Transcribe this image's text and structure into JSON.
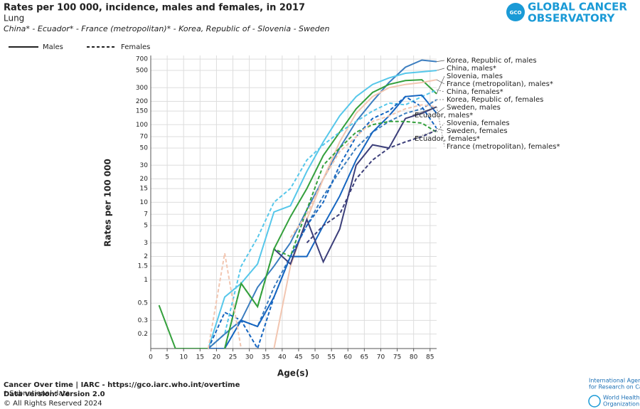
{
  "chart_data": {
    "type": "line",
    "title": "Rates per 100 000, incidence, males and females, in 2017",
    "subtitle": "Lung",
    "populations": "China* - Ecuador* - France (metropolitan)* - Korea, Republic of - Slovenia - Sweden",
    "xlabel": "Age(s)",
    "ylabel": "Rates per 100 000",
    "legend": [
      {
        "label": "Males",
        "dash": false
      },
      {
        "label": "Females",
        "dash": true
      }
    ],
    "log_y": true,
    "grid": true,
    "x": [
      2.5,
      7.5,
      12.5,
      17.5,
      22.5,
      27.5,
      32.5,
      37.5,
      42.5,
      47.5,
      52.5,
      57.5,
      62.5,
      67.5,
      72.5,
      77.5,
      82.5,
      87
    ],
    "xlim": [
      0,
      87
    ],
    "xticks": [
      0,
      5,
      10,
      15,
      20,
      25,
      30,
      35,
      40,
      45,
      50,
      55,
      60,
      65,
      70,
      75,
      80,
      85
    ],
    "ylim": [
      0.13,
      780
    ],
    "yticks": [
      0.2,
      0.3,
      0.5,
      1,
      1.5,
      2,
      3,
      5,
      7,
      10,
      15,
      20,
      30,
      50,
      70,
      100,
      150,
      200,
      300,
      500,
      700
    ],
    "series": [
      {
        "name": "Korea, Republic of, males",
        "color": "#3b7dbf",
        "dash": false,
        "values": [
          null,
          null,
          null,
          0.13,
          0.2,
          0.3,
          0.8,
          1.5,
          3,
          8,
          20,
          50,
          110,
          200,
          350,
          550,
          680,
          650
        ]
      },
      {
        "name": "China, males*",
        "color": "#56c7ea",
        "dash": false,
        "values": [
          null,
          null,
          null,
          0.13,
          0.6,
          0.9,
          1.6,
          7.5,
          9,
          25,
          60,
          130,
          230,
          330,
          400,
          460,
          480,
          500
        ]
      },
      {
        "name": "Slovenia, males",
        "color": "#34a03c",
        "dash": false,
        "values": [
          0.47,
          0.13,
          0.13,
          0.13,
          0.13,
          0.9,
          0.45,
          2.5,
          6.5,
          15,
          40,
          80,
          160,
          260,
          330,
          370,
          380,
          250
        ]
      },
      {
        "name": "France (metropolitan), males*",
        "color": "#f2c6b1",
        "dash": false,
        "values": [
          null,
          null,
          null,
          null,
          null,
          0.13,
          null,
          0.13,
          1.5,
          6,
          20,
          60,
          140,
          230,
          300,
          330,
          350,
          380
        ]
      },
      {
        "name": "China, females*",
        "color": "#56c7ea",
        "dash": true,
        "values": [
          null,
          null,
          null,
          0.13,
          0.2,
          1.5,
          3.5,
          10,
          15,
          35,
          55,
          80,
          110,
          150,
          190,
          180,
          230,
          280
        ]
      },
      {
        "name": "Korea, Republic of, females",
        "color": "#3b7dbf",
        "dash": true,
        "values": [
          null,
          null,
          null,
          0.13,
          0.2,
          0.3,
          0.25,
          0.8,
          2,
          5,
          12,
          25,
          50,
          80,
          110,
          140,
          160,
          210
        ]
      },
      {
        "name": "Sweden, males",
        "color": "#1565c0",
        "dash": false,
        "values": [
          null,
          null,
          null,
          0.13,
          0.13,
          0.3,
          0.25,
          0.6,
          2,
          2,
          5,
          12,
          35,
          80,
          130,
          230,
          240,
          140
        ]
      },
      {
        "name": "Ecuador, males*",
        "color": "#3c3f7a",
        "dash": false,
        "values": [
          null,
          null,
          null,
          null,
          null,
          null,
          null,
          2.5,
          1.6,
          6,
          1.7,
          4.5,
          30,
          55,
          50,
          120,
          140,
          170
        ]
      },
      {
        "name": "Slovenia, females",
        "color": "#34a03c",
        "dash": true,
        "values": [
          null,
          null,
          null,
          null,
          0.13,
          0.9,
          0.45,
          2.5,
          2,
          8,
          30,
          50,
          80,
          100,
          110,
          110,
          105,
          80
        ]
      },
      {
        "name": "Sweden, females",
        "color": "#1565c0",
        "dash": true,
        "values": [
          null,
          null,
          null,
          0.13,
          0.38,
          0.3,
          0.13,
          0.6,
          2,
          5,
          10,
          30,
          70,
          120,
          150,
          230,
          170,
          90
        ]
      },
      {
        "name": "Ecuador, females*",
        "color": "#3c3f7a",
        "dash": true,
        "values": [
          null,
          null,
          null,
          null,
          null,
          null,
          null,
          1.2,
          null,
          3,
          5,
          7,
          20,
          35,
          50,
          60,
          70,
          85
        ]
      },
      {
        "name": "France (metropolitan), females*",
        "color": "#f2c6b1",
        "dash": true,
        "values": [
          null,
          null,
          null,
          0.13,
          2.2,
          0.13,
          null,
          null,
          3.5,
          7,
          20,
          45,
          70,
          110,
          130,
          160,
          180,
          170
        ]
      }
    ]
  },
  "logo": {
    "line1": "GLOBAL CANCER",
    "line2": "OBSERVATORY",
    "badge": "GCO"
  },
  "footer": {
    "source": "Cancer Over time | IARC - https://gco.iarc.who.int/overtime",
    "note": "* Subnational data",
    "version": "Data version: Version 2.0",
    "rights": "© All Rights Reserved 2024"
  },
  "partners": {
    "iarc1": "International Agency",
    "iarc2": "for Research on Cancer",
    "who1": "World Health",
    "who2": "Organization"
  }
}
